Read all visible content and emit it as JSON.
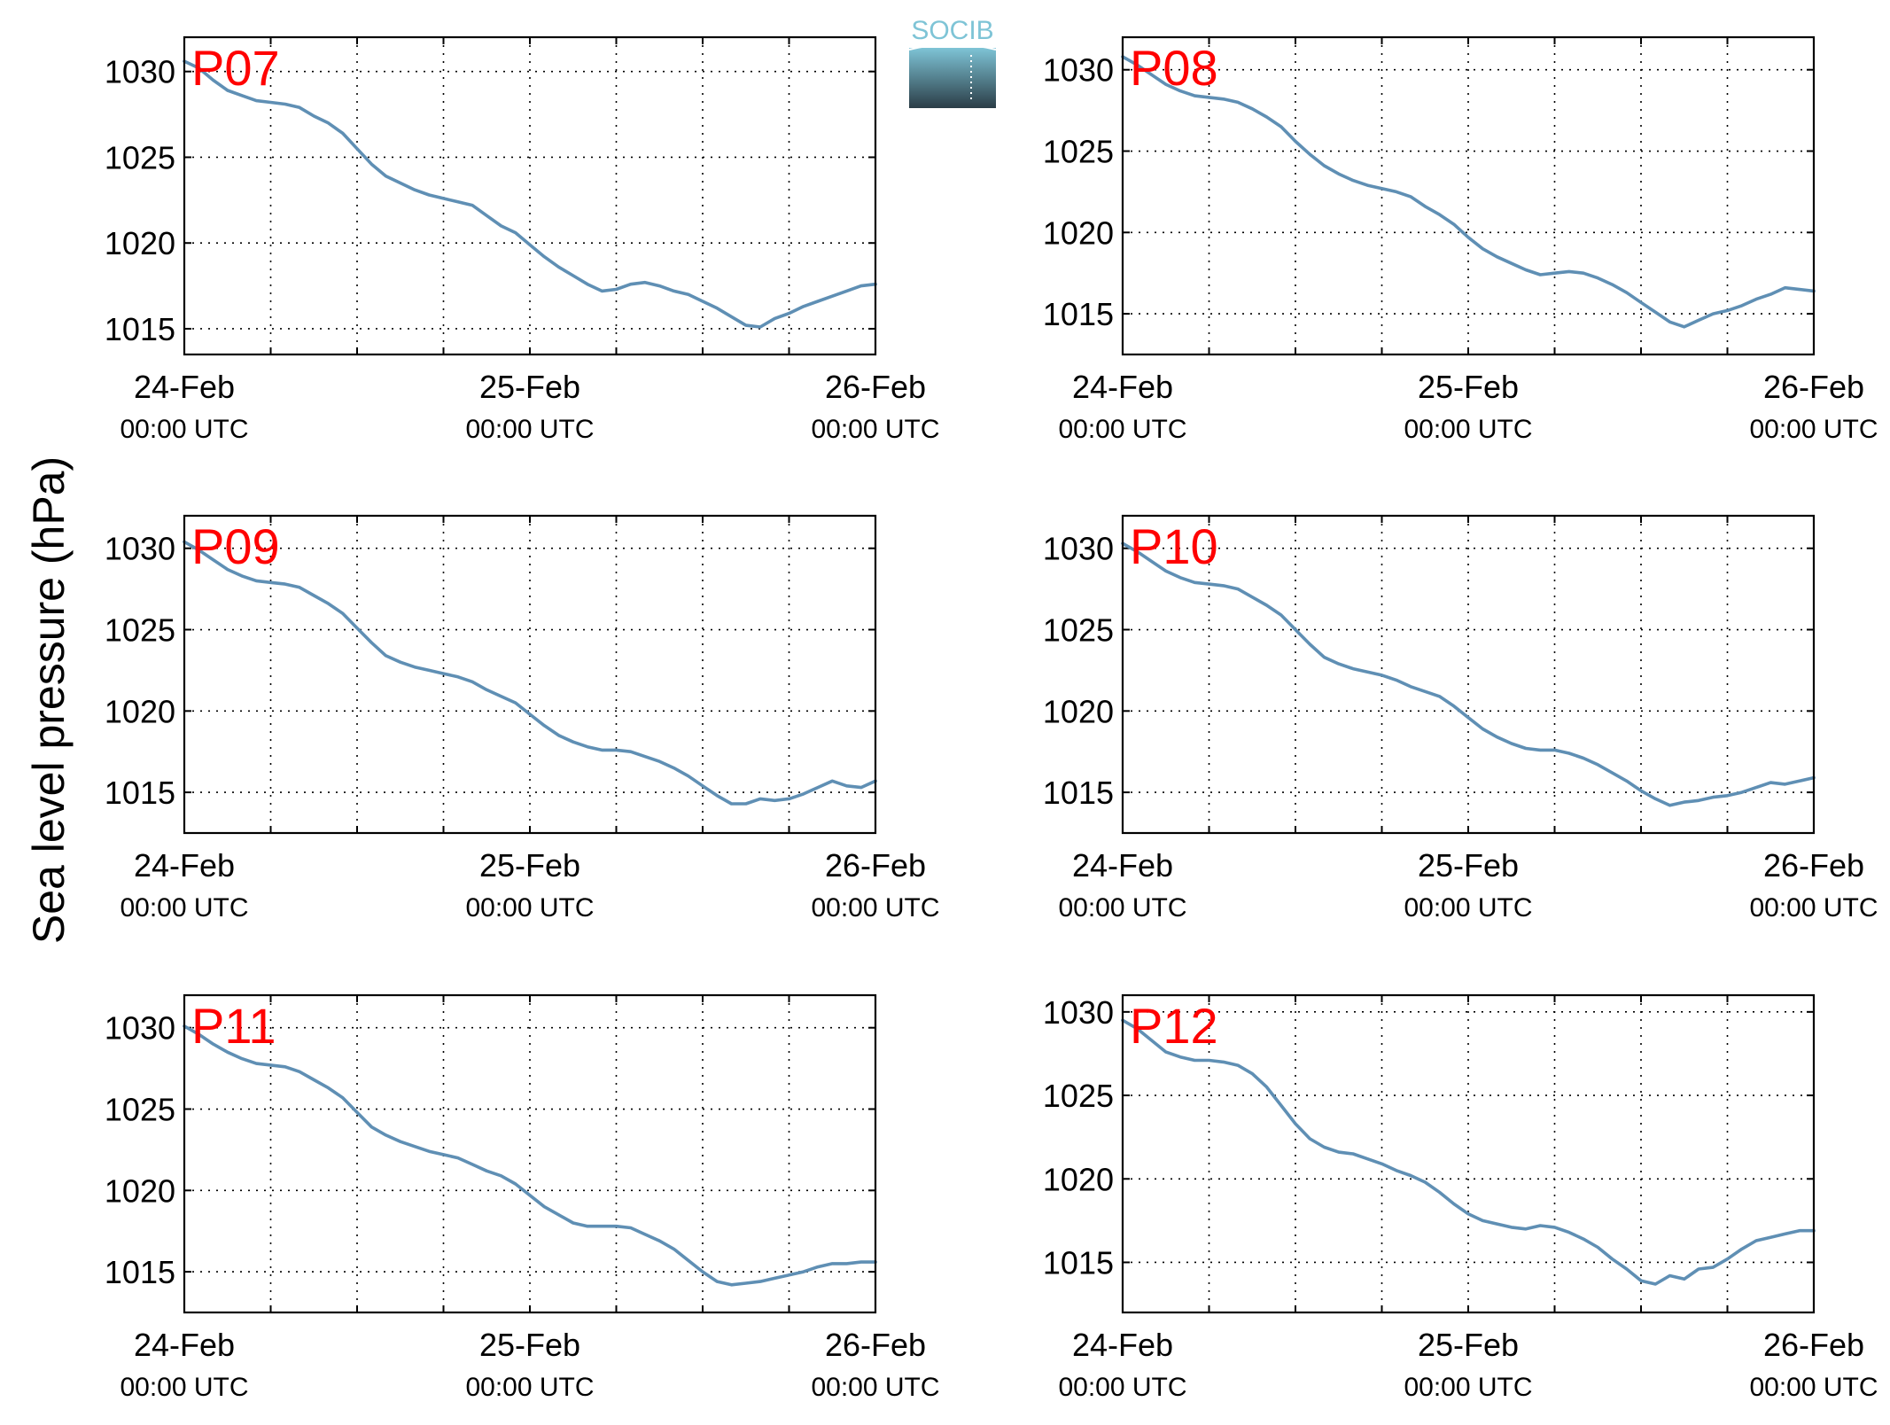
{
  "figure": {
    "ylabel": "Sea level pressure (hPa)",
    "logo_text": "SOCIB"
  },
  "colors": {
    "line": "#5f8fb4",
    "station_label": "#ff0000",
    "axes": "#000000",
    "grid": "#000000",
    "logo_top": "#7ec4d6",
    "logo_bottom": "#2b3d47"
  },
  "chart_data": [
    {
      "type": "line",
      "title": "P07",
      "x_ticks": [
        {
          "date": "24-Feb",
          "time": "00:00 UTC"
        },
        {
          "date": "25-Feb",
          "time": "00:00 UTC"
        },
        {
          "date": "26-Feb",
          "time": "00:00 UTC"
        }
      ],
      "xlim_hours": [
        0,
        48
      ],
      "ylim": [
        1013.5,
        1032
      ],
      "yticks": [
        1015,
        1020,
        1025,
        1030
      ],
      "grid": true,
      "x_hours": [
        0,
        1,
        2,
        3,
        4,
        5,
        6,
        7,
        8,
        9,
        10,
        11,
        12,
        13,
        14,
        15,
        16,
        17,
        18,
        19,
        20,
        21,
        22,
        23,
        24,
        25,
        26,
        27,
        28,
        29,
        30,
        31,
        32,
        33,
        34,
        35,
        36,
        37,
        38,
        39,
        40,
        41,
        42,
        43,
        44,
        45,
        46,
        47,
        48
      ],
      "values": [
        1030.6,
        1030.2,
        1029.5,
        1028.9,
        1028.6,
        1028.3,
        1028.2,
        1028.1,
        1027.9,
        1027.4,
        1027.0,
        1026.4,
        1025.5,
        1024.6,
        1023.9,
        1023.5,
        1023.1,
        1022.8,
        1022.6,
        1022.4,
        1022.2,
        1021.6,
        1021.0,
        1020.6,
        1019.9,
        1019.2,
        1018.6,
        1018.1,
        1017.6,
        1017.2,
        1017.3,
        1017.6,
        1017.7,
        1017.5,
        1017.2,
        1017.0,
        1016.6,
        1016.2,
        1015.7,
        1015.2,
        1015.1,
        1015.6,
        1015.9,
        1016.3,
        1016.6,
        1016.9,
        1017.2,
        1017.5,
        1017.6
      ]
    },
    {
      "type": "line",
      "title": "P08",
      "x_ticks": [
        {
          "date": "24-Feb",
          "time": "00:00 UTC"
        },
        {
          "date": "25-Feb",
          "time": "00:00 UTC"
        },
        {
          "date": "26-Feb",
          "time": "00:00 UTC"
        }
      ],
      "xlim_hours": [
        0,
        48
      ],
      "ylim": [
        1012.5,
        1032
      ],
      "yticks": [
        1015,
        1020,
        1025,
        1030
      ],
      "grid": true,
      "x_hours": [
        0,
        1,
        2,
        3,
        4,
        5,
        6,
        7,
        8,
        9,
        10,
        11,
        12,
        13,
        14,
        15,
        16,
        17,
        18,
        19,
        20,
        21,
        22,
        23,
        24,
        25,
        26,
        27,
        28,
        29,
        30,
        31,
        32,
        33,
        34,
        35,
        36,
        37,
        38,
        39,
        40,
        41,
        42,
        43,
        44,
        45,
        46,
        47,
        48
      ],
      "values": [
        1030.8,
        1030.3,
        1029.7,
        1029.1,
        1028.7,
        1028.4,
        1028.3,
        1028.2,
        1028.0,
        1027.6,
        1027.1,
        1026.5,
        1025.6,
        1024.8,
        1024.1,
        1023.6,
        1023.2,
        1022.9,
        1022.7,
        1022.5,
        1022.2,
        1021.6,
        1021.1,
        1020.5,
        1019.7,
        1019.0,
        1018.5,
        1018.1,
        1017.7,
        1017.4,
        1017.5,
        1017.6,
        1017.5,
        1017.2,
        1016.8,
        1016.3,
        1015.7,
        1015.1,
        1014.5,
        1014.2,
        1014.6,
        1015.0,
        1015.2,
        1015.5,
        1015.9,
        1016.2,
        1016.6,
        1016.5,
        1016.4
      ]
    },
    {
      "type": "line",
      "title": "P09",
      "x_ticks": [
        {
          "date": "24-Feb",
          "time": "00:00 UTC"
        },
        {
          "date": "25-Feb",
          "time": "00:00 UTC"
        },
        {
          "date": "26-Feb",
          "time": "00:00 UTC"
        }
      ],
      "xlim_hours": [
        0,
        48
      ],
      "ylim": [
        1012.5,
        1032
      ],
      "yticks": [
        1015,
        1020,
        1025,
        1030
      ],
      "grid": true,
      "x_hours": [
        0,
        1,
        2,
        3,
        4,
        5,
        6,
        7,
        8,
        9,
        10,
        11,
        12,
        13,
        14,
        15,
        16,
        17,
        18,
        19,
        20,
        21,
        22,
        23,
        24,
        25,
        26,
        27,
        28,
        29,
        30,
        31,
        32,
        33,
        34,
        35,
        36,
        37,
        38,
        39,
        40,
        41,
        42,
        43,
        44,
        45,
        46,
        47,
        48
      ],
      "values": [
        1030.4,
        1029.9,
        1029.3,
        1028.7,
        1028.3,
        1028.0,
        1027.9,
        1027.8,
        1027.6,
        1027.1,
        1026.6,
        1026.0,
        1025.1,
        1024.2,
        1023.4,
        1023.0,
        1022.7,
        1022.5,
        1022.3,
        1022.1,
        1021.8,
        1021.3,
        1020.9,
        1020.5,
        1019.8,
        1019.1,
        1018.5,
        1018.1,
        1017.8,
        1017.6,
        1017.6,
        1017.5,
        1017.2,
        1016.9,
        1016.5,
        1016.0,
        1015.4,
        1014.8,
        1014.3,
        1014.3,
        1014.6,
        1014.5,
        1014.6,
        1014.9,
        1015.3,
        1015.7,
        1015.4,
        1015.3,
        1015.7
      ]
    },
    {
      "type": "line",
      "title": "P10",
      "x_ticks": [
        {
          "date": "24-Feb",
          "time": "00:00 UTC"
        },
        {
          "date": "25-Feb",
          "time": "00:00 UTC"
        },
        {
          "date": "26-Feb",
          "time": "00:00 UTC"
        }
      ],
      "xlim_hours": [
        0,
        48
      ],
      "ylim": [
        1012.5,
        1032
      ],
      "yticks": [
        1015,
        1020,
        1025,
        1030
      ],
      "grid": true,
      "x_hours": [
        0,
        1,
        2,
        3,
        4,
        5,
        6,
        7,
        8,
        9,
        10,
        11,
        12,
        13,
        14,
        15,
        16,
        17,
        18,
        19,
        20,
        21,
        22,
        23,
        24,
        25,
        26,
        27,
        28,
        29,
        30,
        31,
        32,
        33,
        34,
        35,
        36,
        37,
        38,
        39,
        40,
        41,
        42,
        43,
        44,
        45,
        46,
        47,
        48
      ],
      "values": [
        1030.3,
        1029.8,
        1029.2,
        1028.6,
        1028.2,
        1027.9,
        1027.8,
        1027.7,
        1027.5,
        1027.0,
        1026.5,
        1025.9,
        1025.0,
        1024.1,
        1023.3,
        1022.9,
        1022.6,
        1022.4,
        1022.2,
        1021.9,
        1021.5,
        1021.2,
        1020.9,
        1020.3,
        1019.6,
        1018.9,
        1018.4,
        1018.0,
        1017.7,
        1017.6,
        1017.6,
        1017.4,
        1017.1,
        1016.7,
        1016.2,
        1015.7,
        1015.1,
        1014.6,
        1014.2,
        1014.4,
        1014.5,
        1014.7,
        1014.8,
        1015.0,
        1015.3,
        1015.6,
        1015.5,
        1015.7,
        1015.9
      ]
    },
    {
      "type": "line",
      "title": "P11",
      "x_ticks": [
        {
          "date": "24-Feb",
          "time": "00:00 UTC"
        },
        {
          "date": "25-Feb",
          "time": "00:00 UTC"
        },
        {
          "date": "26-Feb",
          "time": "00:00 UTC"
        }
      ],
      "xlim_hours": [
        0,
        48
      ],
      "ylim": [
        1012.5,
        1032
      ],
      "yticks": [
        1015,
        1020,
        1025,
        1030
      ],
      "grid": true,
      "x_hours": [
        0,
        1,
        2,
        3,
        4,
        5,
        6,
        7,
        8,
        9,
        10,
        11,
        12,
        13,
        14,
        15,
        16,
        17,
        18,
        19,
        20,
        21,
        22,
        23,
        24,
        25,
        26,
        27,
        28,
        29,
        30,
        31,
        32,
        33,
        34,
        35,
        36,
        37,
        38,
        39,
        40,
        41,
        42,
        43,
        44,
        45,
        46,
        47,
        48
      ],
      "values": [
        1030.1,
        1029.6,
        1029.0,
        1028.5,
        1028.1,
        1027.8,
        1027.7,
        1027.6,
        1027.3,
        1026.8,
        1026.3,
        1025.7,
        1024.8,
        1023.9,
        1023.4,
        1023.0,
        1022.7,
        1022.4,
        1022.2,
        1022.0,
        1021.6,
        1021.2,
        1020.9,
        1020.4,
        1019.7,
        1019.0,
        1018.5,
        1018.0,
        1017.8,
        1017.8,
        1017.8,
        1017.7,
        1017.3,
        1016.9,
        1016.4,
        1015.7,
        1015.0,
        1014.4,
        1014.2,
        1014.3,
        1014.4,
        1014.6,
        1014.8,
        1015.0,
        1015.3,
        1015.5,
        1015.5,
        1015.6,
        1015.6
      ]
    },
    {
      "type": "line",
      "title": "P12",
      "x_ticks": [
        {
          "date": "24-Feb",
          "time": "00:00 UTC"
        },
        {
          "date": "25-Feb",
          "time": "00:00 UTC"
        },
        {
          "date": "26-Feb",
          "time": "00:00 UTC"
        }
      ],
      "xlim_hours": [
        0,
        48
      ],
      "ylim": [
        1012,
        1031
      ],
      "yticks": [
        1015,
        1020,
        1025,
        1030
      ],
      "grid": true,
      "x_hours": [
        0,
        1,
        2,
        3,
        4,
        5,
        6,
        7,
        8,
        9,
        10,
        11,
        12,
        13,
        14,
        15,
        16,
        17,
        18,
        19,
        20,
        21,
        22,
        23,
        24,
        25,
        26,
        27,
        28,
        29,
        30,
        31,
        32,
        33,
        34,
        35,
        36,
        37,
        38,
        39,
        40,
        41,
        42,
        43,
        44,
        45,
        46,
        47,
        48
      ],
      "values": [
        1029.5,
        1029.0,
        1028.3,
        1027.6,
        1027.3,
        1027.1,
        1027.1,
        1027.0,
        1026.8,
        1026.3,
        1025.5,
        1024.4,
        1023.3,
        1022.4,
        1021.9,
        1021.6,
        1021.5,
        1021.2,
        1020.9,
        1020.5,
        1020.2,
        1019.8,
        1019.2,
        1018.5,
        1017.9,
        1017.5,
        1017.3,
        1017.1,
        1017.0,
        1017.2,
        1017.1,
        1016.8,
        1016.4,
        1015.9,
        1015.2,
        1014.6,
        1013.9,
        1013.7,
        1014.2,
        1014.0,
        1014.6,
        1014.7,
        1015.2,
        1015.8,
        1016.3,
        1016.5,
        1016.7,
        1016.9,
        1016.9
      ]
    }
  ]
}
